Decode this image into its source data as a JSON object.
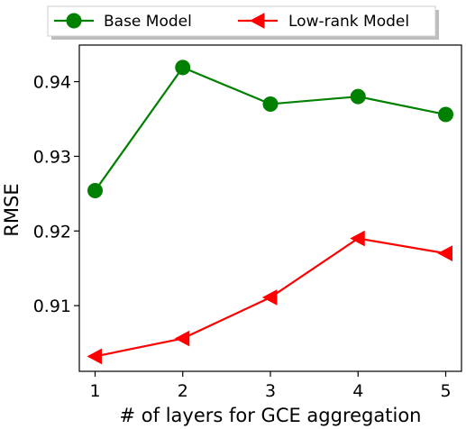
{
  "chart_data": {
    "type": "line",
    "x": [
      1,
      2,
      3,
      4,
      5
    ],
    "xlabel": "# of layers for GCE aggregation",
    "ylabel": "RMSE",
    "xticks": [
      "1",
      "2",
      "3",
      "4",
      "5"
    ],
    "yticks": [
      "0.91",
      "0.92",
      "0.93",
      "0.94"
    ],
    "xlim": [
      0.82,
      5.18
    ],
    "ylim": [
      0.9012,
      0.9449
    ],
    "grid": false,
    "legend_position": "top-center",
    "series": [
      {
        "name": "Base Model",
        "values": [
          0.9254,
          0.9419,
          0.937,
          0.938,
          0.9356
        ],
        "color": "#008000",
        "marker": "circle"
      },
      {
        "name": "Low-rank Model",
        "values": [
          0.9032,
          0.9056,
          0.9111,
          0.919,
          0.917
        ],
        "color": "#ff0000",
        "marker": "triangle-left"
      }
    ]
  }
}
